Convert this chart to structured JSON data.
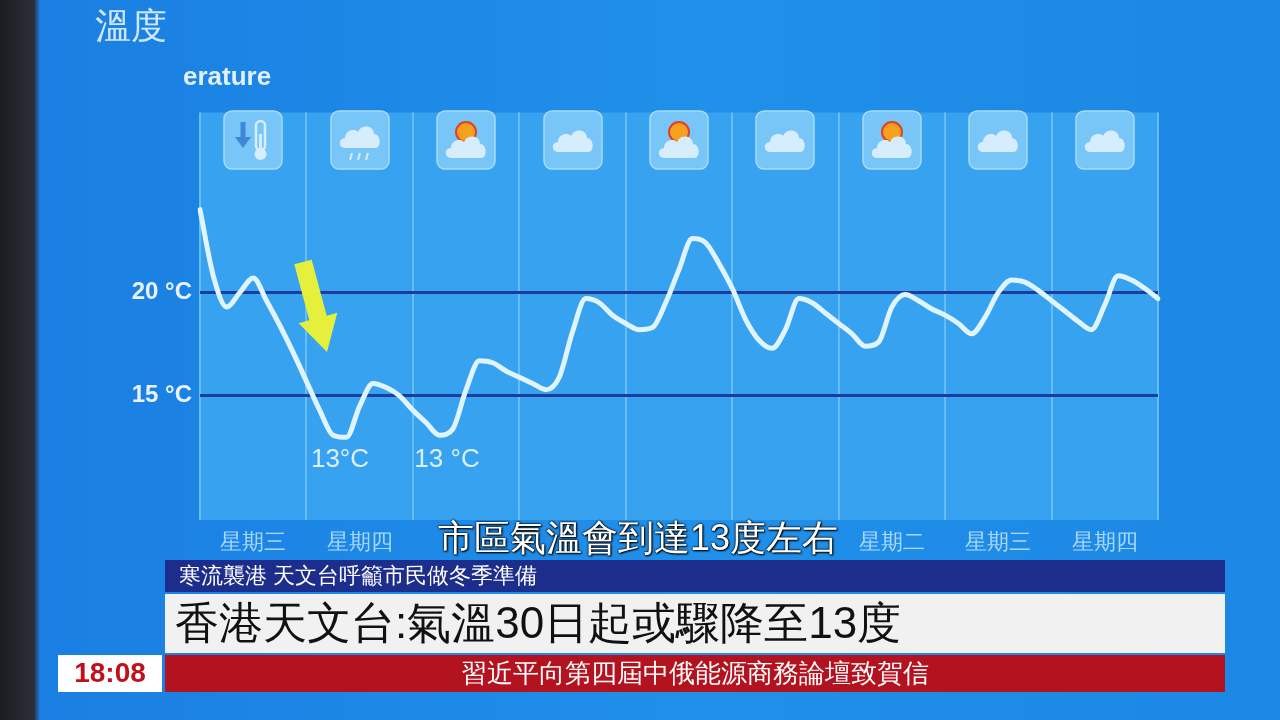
{
  "chart_data": {
    "type": "line",
    "title": "溫度",
    "subtitle": "erature",
    "categories": [
      null,
      null,
      null,
      null,
      "星期三",
      null,
      null,
      null,
      null,
      null,
      null,
      null,
      "星期四",
      null,
      null,
      null,
      null,
      null,
      null,
      null,
      null,
      null,
      null,
      null,
      null,
      null,
      null,
      null,
      null,
      null,
      null,
      null,
      null,
      null,
      null,
      null,
      null,
      null,
      null,
      null,
      null,
      null,
      null,
      null,
      null,
      null,
      null,
      null,
      null,
      null,
      null,
      null,
      "星期二",
      null,
      null,
      null,
      null,
      null,
      null,
      null,
      "星期三",
      null,
      null,
      null,
      null,
      null,
      null,
      null,
      "星期四",
      null,
      null,
      null,
      null
    ],
    "series": [
      {
        "color": "#dff4ff",
        "values": [
          24.0,
          20.8,
          19.3,
          20.0,
          20.7,
          19.6,
          18.4,
          17.1,
          15.7,
          14.3,
          13.1,
          13.0,
          14.5,
          15.6,
          15.4,
          15.0,
          14.3,
          13.7,
          13.1,
          13.4,
          15.3,
          16.7,
          16.6,
          16.2,
          15.9,
          15.6,
          15.3,
          15.9,
          18.1,
          19.7,
          19.5,
          18.9,
          18.5,
          18.2,
          18.3,
          19.5,
          21.1,
          22.6,
          22.4,
          21.4,
          20.2,
          18.7,
          17.7,
          17.3,
          18.2,
          19.7,
          19.5,
          19.0,
          18.5,
          18.0,
          17.4,
          17.6,
          19.3,
          19.9,
          19.6,
          19.2,
          18.9,
          18.5,
          18.0,
          18.8,
          20.0,
          20.6,
          20.5,
          20.1,
          19.6,
          19.1,
          18.6,
          18.2,
          19.4,
          20.8,
          20.6,
          20.2,
          19.7
        ]
      }
    ],
    "ylim": [
      9,
      28.7
    ],
    "yticks": [
      {
        "value": 15,
        "label": "15 °C"
      },
      {
        "value": 20,
        "label": "20 °C"
      }
    ],
    "grid": true,
    "marker": "none",
    "line_style": "solid",
    "annotations": [
      "13°C",
      "13 °C",
      "市區氣溫會到達13度左右",
      "寒流襲港 天文台呼籲市民做冬季準備",
      "香港天文台:氣溫30日起或驟降至13度",
      "習近平向第四屆中俄能源商務論壇致賀信",
      "18:08"
    ]
  }
}
